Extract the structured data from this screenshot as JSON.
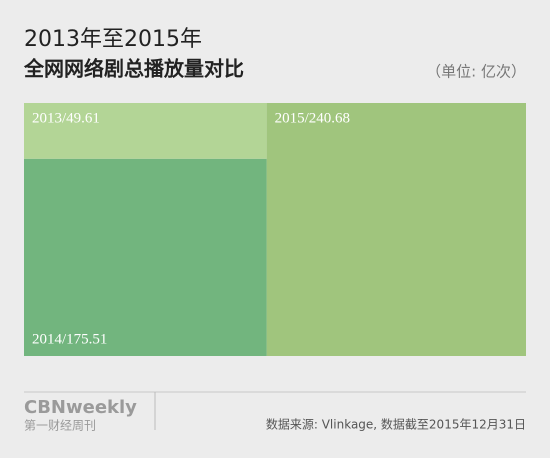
{
  "chart_data": {
    "type": "area-blocks",
    "title": "2013年至2015年",
    "subtitle": "全网网络剧总播放量对比",
    "unit_note": "（单位: 亿次）",
    "categories": [
      "2013",
      "2014",
      "2015"
    ],
    "values": [
      49.61,
      175.51,
      240.68
    ],
    "value_labels": [
      "2013/49.61",
      "2014/175.51",
      "2015/240.68"
    ],
    "colors": [
      "#b3d596",
      "#72b57e",
      "#a0c57d"
    ],
    "source": "数据来源: Vlinkage, 数据截至2015年12月31日",
    "brand": "CBNweekly",
    "brand_sub": "第一财经周刊"
  }
}
